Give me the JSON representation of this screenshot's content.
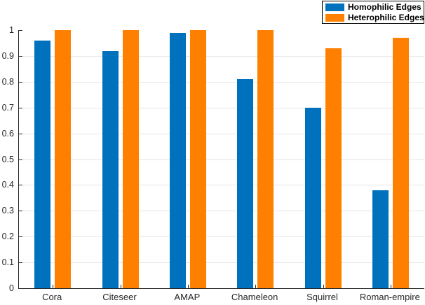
{
  "chart_data": {
    "type": "bar",
    "title": "",
    "categories": [
      "Cora",
      "Citeseer",
      "AMAP",
      "Chameleon",
      "Squirrel",
      "Roman-empire"
    ],
    "series": [
      {
        "name": "Homophilic Edges",
        "color": "#0072BD",
        "values": [
          0.96,
          0.92,
          0.99,
          0.81,
          0.7,
          0.38
        ]
      },
      {
        "name": "Heterophilic Edges",
        "color": "#FF8000",
        "values": [
          1.0,
          1.0,
          1.0,
          1.0,
          0.93,
          0.97
        ]
      }
    ],
    "xlabel": "",
    "ylabel": "",
    "ylim": [
      0,
      1
    ],
    "yticks": [
      0,
      0.1,
      0.2,
      0.3,
      0.4,
      0.5,
      0.6,
      0.7,
      0.8,
      0.9,
      1
    ],
    "ytick_labels": [
      "0",
      "0.1",
      "0.2",
      "0.3",
      "0.4",
      "0.5",
      "0.6",
      "0.7",
      "0.8",
      "0.9",
      "1"
    ],
    "grid": "horizontal",
    "grid_color": "#E6E6E6",
    "axis_color": "#262626",
    "legend": {
      "position": "top-right",
      "border": true
    }
  }
}
